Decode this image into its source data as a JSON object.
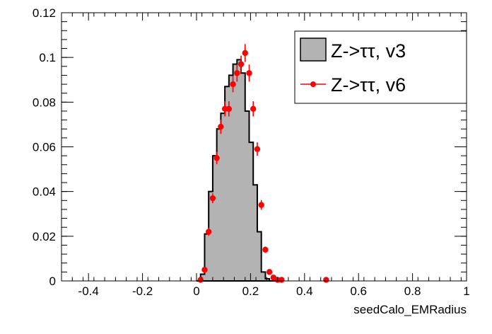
{
  "chart_data": {
    "type": "histogram",
    "title": "",
    "xlabel": "seedCalo_EMRadius",
    "ylabel": "",
    "xlim": [
      -0.5,
      1.0
    ],
    "ylim": [
      0,
      0.12
    ],
    "x_ticks": [
      "-0.4",
      "-0.2",
      "0",
      "0.2",
      "0.4",
      "0.6",
      "0.8",
      "1"
    ],
    "y_ticks": [
      "0",
      "0.02",
      "0.04",
      "0.06",
      "0.08",
      "0.1",
      "0.12"
    ],
    "x_tick_values": [
      -0.4,
      -0.2,
      0,
      0.2,
      0.4,
      0.6,
      0.8,
      1.0
    ],
    "y_tick_values": [
      0,
      0.02,
      0.04,
      0.06,
      0.08,
      0.1,
      0.12
    ],
    "bin_width": 0.015,
    "legend_position": "top-right",
    "series": [
      {
        "name": "Z->ττ, v3",
        "style": "filled-histogram",
        "fill": "#b3b3b3",
        "line": "#000000",
        "bin_edges": [
          0.0,
          0.015,
          0.03,
          0.045,
          0.06,
          0.075,
          0.09,
          0.105,
          0.12,
          0.135,
          0.15,
          0.165,
          0.18,
          0.195,
          0.21,
          0.225,
          0.24,
          0.255,
          0.27,
          0.285,
          0.3
        ],
        "values": [
          0.0,
          0.003,
          0.021,
          0.04,
          0.056,
          0.068,
          0.075,
          0.087,
          0.092,
          0.097,
          0.099,
          0.093,
          0.076,
          0.062,
          0.043,
          0.022,
          0.004,
          0.001,
          0.0,
          0.0
        ]
      },
      {
        "name": "Z->ττ, v6",
        "style": "markers-with-errors",
        "color": "#ff0000",
        "x": [
          0.015,
          0.03,
          0.045,
          0.06,
          0.075,
          0.09,
          0.105,
          0.12,
          0.135,
          0.15,
          0.165,
          0.18,
          0.195,
          0.21,
          0.225,
          0.24,
          0.255,
          0.27,
          0.285,
          0.3,
          0.315,
          0.48
        ],
        "y": [
          0.0005,
          0.005,
          0.022,
          0.037,
          0.055,
          0.069,
          0.077,
          0.077,
          0.088,
          0.093,
          0.097,
          0.102,
          0.093,
          0.077,
          0.059,
          0.034,
          0.014,
          0.004,
          0.0015,
          0.0005,
          0.0005,
          0.0005
        ],
        "yerr": [
          0.0005,
          0.001,
          0.0018,
          0.0022,
          0.0028,
          0.0032,
          0.0034,
          0.0034,
          0.0036,
          0.0038,
          0.0038,
          0.004,
          0.0038,
          0.0034,
          0.003,
          0.0022,
          0.0014,
          0.0008,
          0.0005,
          0.0003,
          0.0003,
          0.0003
        ]
      }
    ]
  }
}
